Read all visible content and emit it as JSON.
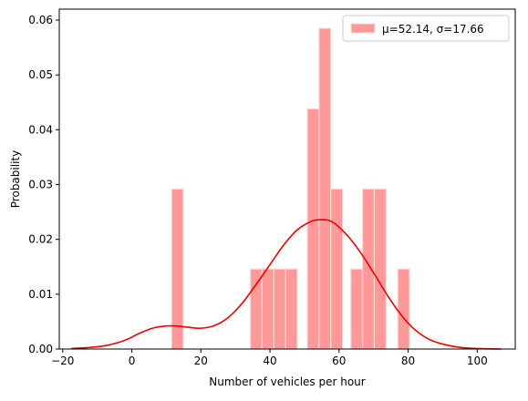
{
  "chart_data": {
    "type": "bar",
    "title": "",
    "xlabel": "Number of vehicles per hour",
    "ylabel": "Probability",
    "xlim": [
      -21,
      111
    ],
    "ylim": [
      0,
      0.062
    ],
    "x_ticks": [
      -20,
      0,
      20,
      40,
      60,
      80,
      100
    ],
    "y_ticks": [
      0.0,
      0.01,
      0.02,
      0.03,
      0.04,
      0.05,
      0.06
    ],
    "x_tick_labels": [
      "−20",
      "0",
      "20",
      "40",
      "60",
      "80",
      "100"
    ],
    "y_tick_labels": [
      "0.00",
      "0.01",
      "0.02",
      "0.03",
      "0.04",
      "0.05",
      "0.06"
    ],
    "grid": false,
    "legend_position": "top-right",
    "bar_color": "#ff9999",
    "bar_edge_color": "#f5dcdc",
    "line_color": "#ee0000",
    "histogram": {
      "bin_width": 3.4,
      "bars": [
        {
          "left": 11.5,
          "value": 0.0292
        },
        {
          "left": 34.3,
          "value": 0.0146
        },
        {
          "left": 37.7,
          "value": 0.0146
        },
        {
          "left": 41.1,
          "value": 0.0146
        },
        {
          "left": 44.5,
          "value": 0.0146
        },
        {
          "left": 50.8,
          "value": 0.0438
        },
        {
          "left": 54.2,
          "value": 0.0585
        },
        {
          "left": 57.6,
          "value": 0.0292
        },
        {
          "left": 63.4,
          "value": 0.0146
        },
        {
          "left": 66.8,
          "value": 0.0292
        },
        {
          "left": 70.2,
          "value": 0.0292
        },
        {
          "left": 77.0,
          "value": 0.0146
        }
      ]
    },
    "kde": {
      "x": [
        -17.5,
        -12,
        -7,
        -2,
        2,
        6,
        10,
        13,
        16,
        20,
        24,
        28,
        32,
        36,
        40,
        44,
        48,
        52,
        55,
        58,
        62,
        66,
        70,
        74,
        78,
        82,
        86,
        90,
        95,
        100,
        107
      ],
      "y": [
        0.0001,
        0.0003,
        0.0007,
        0.0016,
        0.0028,
        0.0038,
        0.0042,
        0.0042,
        0.004,
        0.0038,
        0.0043,
        0.0058,
        0.0084,
        0.0118,
        0.0154,
        0.019,
        0.0218,
        0.0233,
        0.0236,
        0.0232,
        0.021,
        0.0178,
        0.0139,
        0.0098,
        0.0062,
        0.0035,
        0.0018,
        0.0009,
        0.0003,
        0.0001,
        0.0
      ]
    },
    "series": [
      {
        "name": "μ=52.14, σ=17.66"
      }
    ]
  }
}
